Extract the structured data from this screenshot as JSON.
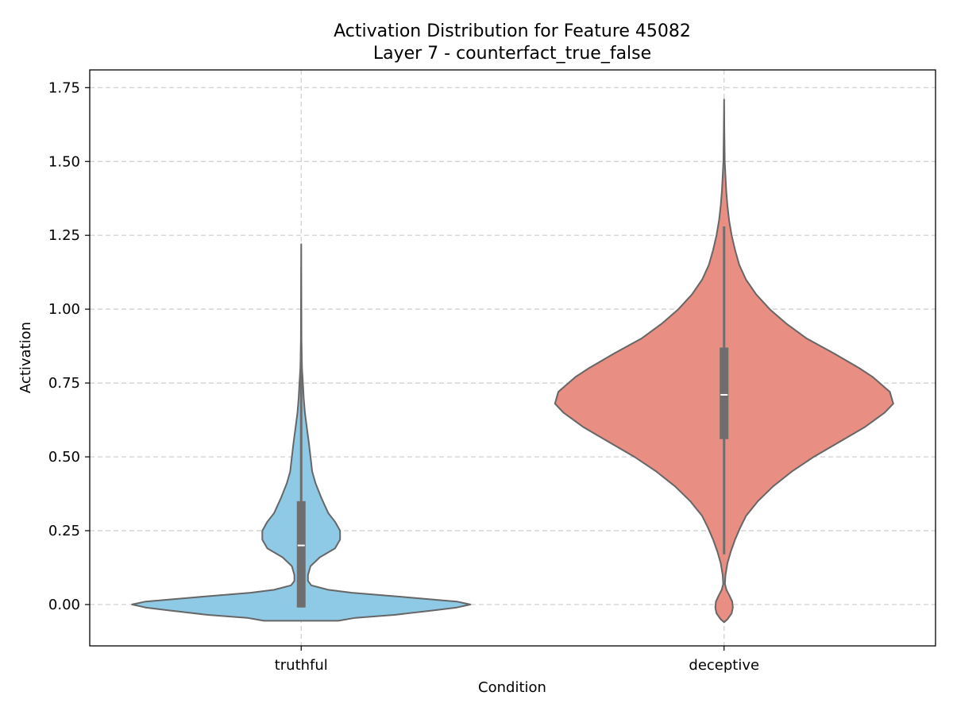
{
  "chart_data": {
    "type": "violin",
    "title": "Activation Distribution for Feature 45082",
    "subtitle": "Layer 7 - counterfact_true_false",
    "xlabel": "Condition",
    "ylabel": "Activation",
    "categories": [
      "truthful",
      "deceptive"
    ],
    "ylim": [
      -0.14,
      1.81
    ],
    "yticks": [
      0.0,
      0.25,
      0.5,
      0.75,
      1.0,
      1.25,
      1.5,
      1.75
    ],
    "ytick_labels": [
      "0.00",
      "0.25",
      "0.50",
      "0.75",
      "1.00",
      "1.25",
      "1.50",
      "1.75"
    ],
    "grid": true,
    "series": [
      {
        "colors": {
          "fill": "#8ecae6",
          "edge": "#666666"
        },
        "density": [
          [
            -0.055,
            0.22
          ],
          [
            -0.045,
            0.32
          ],
          [
            -0.035,
            0.55
          ],
          [
            -0.02,
            0.78
          ],
          [
            -0.01,
            0.92
          ],
          [
            0.0,
            1.0
          ],
          [
            0.01,
            0.92
          ],
          [
            0.025,
            0.62
          ],
          [
            0.04,
            0.3
          ],
          [
            0.05,
            0.16
          ],
          [
            0.065,
            0.06
          ],
          [
            0.08,
            0.04
          ],
          [
            0.1,
            0.04
          ],
          [
            0.13,
            0.055
          ],
          [
            0.16,
            0.11
          ],
          [
            0.19,
            0.2
          ],
          [
            0.22,
            0.23
          ],
          [
            0.25,
            0.23
          ],
          [
            0.28,
            0.2
          ],
          [
            0.31,
            0.16
          ],
          [
            0.36,
            0.12
          ],
          [
            0.41,
            0.085
          ],
          [
            0.45,
            0.065
          ],
          [
            0.5,
            0.055
          ],
          [
            0.55,
            0.045
          ],
          [
            0.6,
            0.033
          ],
          [
            0.65,
            0.022
          ],
          [
            0.7,
            0.015
          ],
          [
            0.75,
            0.01
          ],
          [
            0.8,
            0.005
          ],
          [
            0.85,
            0.003
          ],
          [
            0.9,
            0.0015
          ],
          [
            1.0,
            0.001
          ],
          [
            1.1,
            0.0005
          ],
          [
            1.22,
            0.0
          ]
        ],
        "median": 0.2,
        "q1": -0.01,
        "q3": 0.35,
        "whisker_low": -0.01,
        "whisker_high": 0.85
      },
      {
        "colors": {
          "fill": "#e88e83",
          "edge": "#666666"
        },
        "density": [
          [
            -0.06,
            0.0
          ],
          [
            -0.05,
            0.02
          ],
          [
            -0.03,
            0.045
          ],
          [
            -0.01,
            0.052
          ],
          [
            0.01,
            0.048
          ],
          [
            0.03,
            0.032
          ],
          [
            0.05,
            0.014
          ],
          [
            0.07,
            0.005
          ],
          [
            0.1,
            0.008
          ],
          [
            0.14,
            0.02
          ],
          [
            0.18,
            0.04
          ],
          [
            0.22,
            0.065
          ],
          [
            0.26,
            0.095
          ],
          [
            0.3,
            0.13
          ],
          [
            0.35,
            0.2
          ],
          [
            0.4,
            0.29
          ],
          [
            0.45,
            0.4
          ],
          [
            0.5,
            0.53
          ],
          [
            0.55,
            0.68
          ],
          [
            0.6,
            0.83
          ],
          [
            0.65,
            0.95
          ],
          [
            0.68,
            1.0
          ],
          [
            0.72,
            0.98
          ],
          [
            0.77,
            0.88
          ],
          [
            0.8,
            0.8
          ],
          [
            0.85,
            0.65
          ],
          [
            0.9,
            0.49
          ],
          [
            0.95,
            0.37
          ],
          [
            1.0,
            0.27
          ],
          [
            1.05,
            0.19
          ],
          [
            1.1,
            0.13
          ],
          [
            1.15,
            0.09
          ],
          [
            1.2,
            0.065
          ],
          [
            1.25,
            0.045
          ],
          [
            1.3,
            0.03
          ],
          [
            1.35,
            0.02
          ],
          [
            1.4,
            0.013
          ],
          [
            1.45,
            0.008
          ],
          [
            1.5,
            0.004
          ],
          [
            1.6,
            0.0015
          ],
          [
            1.71,
            0.0
          ]
        ],
        "median": 0.71,
        "q1": 0.56,
        "q3": 0.87,
        "whisker_low": 0.17,
        "whisker_high": 1.28
      }
    ]
  }
}
